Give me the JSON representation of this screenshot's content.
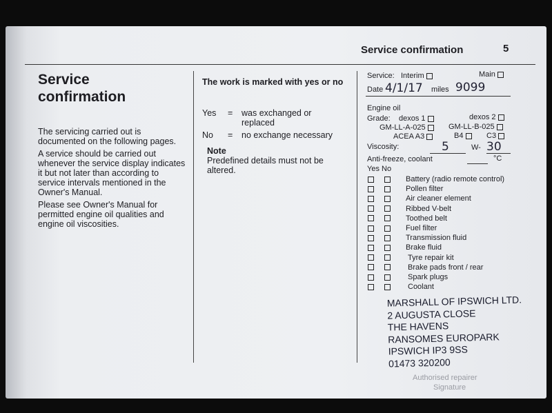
{
  "header": {
    "title": "Service confirmation",
    "page": "5"
  },
  "left": {
    "title_line1": "Service",
    "title_line2": "confirmation",
    "paragraphs": [
      "The servicing carried out is documented on the following pages.",
      "A service should be carried out whenever the service display indicates it but not later than according to service intervals mentioned in the Owner's Manual.",
      "Please see Owner's Manual for permitted engine oil qualities and engine oil viscosities."
    ]
  },
  "middle": {
    "heading": "The work is marked with yes or no",
    "yes_label": "Yes",
    "yes_eq": "=",
    "yes_text": "was exchanged or replaced",
    "no_label": "No",
    "no_eq": "=",
    "no_text": "no exchange necessary",
    "note_title": "Note",
    "note_text": "Predefined details must not be altered."
  },
  "form": {
    "service_label": "Service:",
    "interim": "Interim",
    "main": "Main",
    "date_label": "Date",
    "date_value": "4/1/17",
    "miles_label": "miles",
    "miles_value": "9099",
    "engine_oil": "Engine oil",
    "grade_label": "Grade:",
    "grades": [
      "dexos 1",
      "dexos 2",
      "GM-LL-A-025",
      "GM-LL-B-025",
      "ACEA A3",
      "B4",
      "C3"
    ],
    "viscosity_label": "Viscosity:",
    "viscosity_value": "5",
    "w_label": "W-",
    "w_value": "30",
    "antifreeze_label": "Anti-freeze, coolant",
    "celsius": "°C",
    "yes_no": "Yes No",
    "items": [
      "Battery (radio remote control)",
      "Pollen filter",
      "Air cleaner element",
      "Ribbed V-belt",
      "Toothed belt",
      "Fuel filter",
      "Transmission fluid",
      "Brake fluid",
      "Tyre repair kit",
      "Brake pads front / rear",
      "Spark plugs",
      "Coolant"
    ],
    "faint_labels": [
      "Authorised repairer",
      "Signature"
    ]
  },
  "stamp": {
    "lines": [
      "MARSHALL OF IPSWICH LTD.",
      "2 AUGUSTA CLOSE",
      "THE HAVENS",
      "RANSOMES EUROPARK",
      "IPSWICH IP3 9SS",
      "01473 320200"
    ]
  }
}
